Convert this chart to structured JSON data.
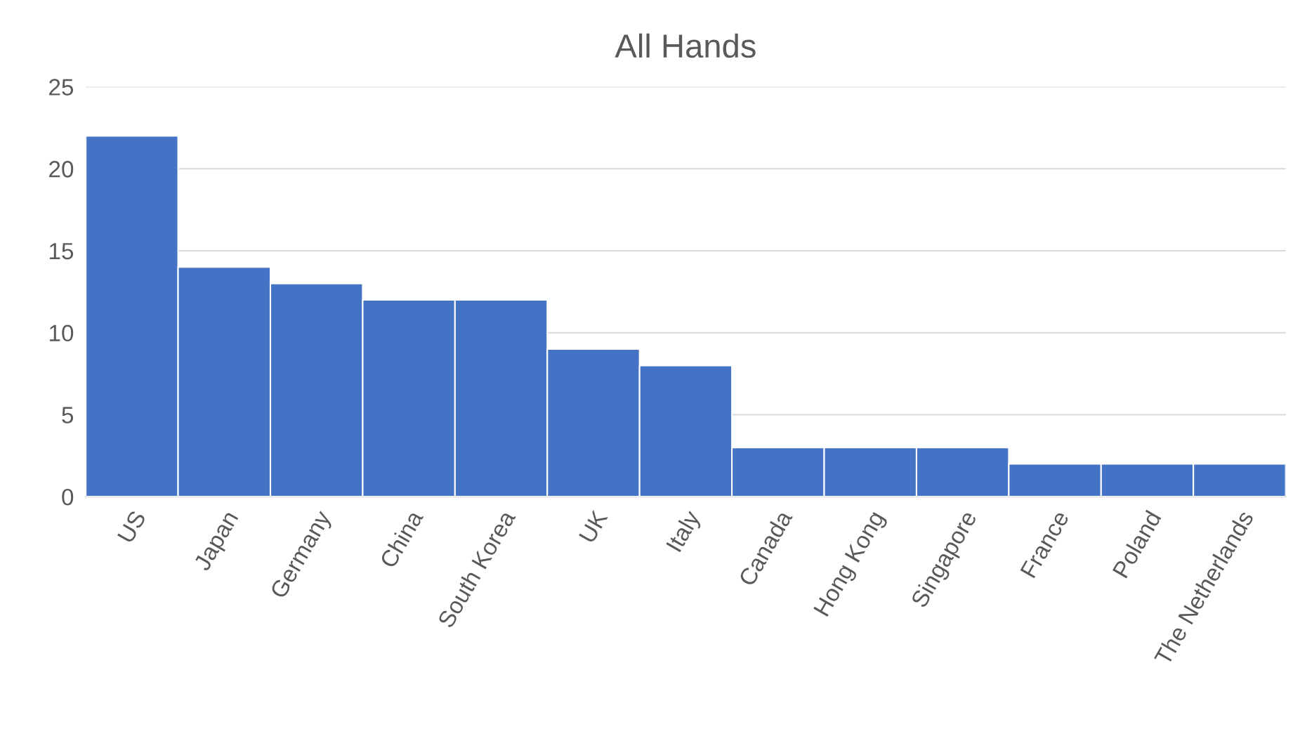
{
  "chart_data": {
    "type": "bar",
    "title": "All Hands",
    "categories": [
      "US",
      "Japan",
      "Germany",
      "China",
      "South Korea",
      "UK",
      "Italy",
      "Canada",
      "Hong Kong",
      "Singapore",
      "France",
      "Poland",
      "The Netherlands"
    ],
    "values": [
      22,
      14,
      13,
      12,
      12,
      9,
      8,
      3,
      3,
      3,
      2,
      2,
      2
    ],
    "color": "#4472c4",
    "ylim": [
      0,
      25
    ],
    "yticks": [
      0,
      5,
      10,
      15,
      20,
      25
    ],
    "grid": "y",
    "legend": false
  }
}
